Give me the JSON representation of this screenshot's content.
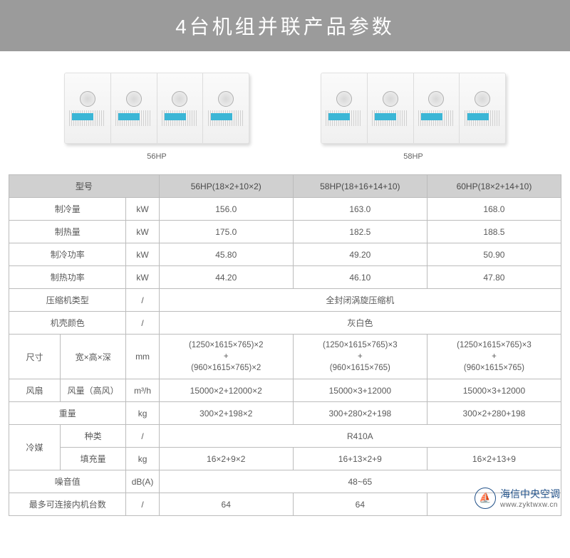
{
  "header": {
    "title": "4台机组并联产品参数"
  },
  "products": [
    {
      "label": "56HP",
      "panels": 4
    },
    {
      "label": "58HP",
      "panels": 4
    }
  ],
  "table": {
    "header": {
      "model_label": "型号",
      "models": [
        "56HP(18×2+10×2)",
        "58HP(18+16+14+10)",
        "60HP(18×2+14+10)"
      ]
    },
    "rows": [
      {
        "label": "制冷量",
        "unit": "kW",
        "cells": [
          "156.0",
          "163.0",
          "168.0"
        ]
      },
      {
        "label": "制热量",
        "unit": "kW",
        "cells": [
          "175.0",
          "182.5",
          "188.5"
        ]
      },
      {
        "label": "制冷功率",
        "unit": "kW",
        "cells": [
          "45.80",
          "49.20",
          "50.90"
        ]
      },
      {
        "label": "制热功率",
        "unit": "kW",
        "cells": [
          "44.20",
          "46.10",
          "47.80"
        ]
      },
      {
        "label": "压缩机类型",
        "unit": "/",
        "merged": "全封闭涡旋压缩机"
      },
      {
        "label": "机壳颜色",
        "unit": "/",
        "merged": "灰白色"
      }
    ],
    "dimensions": {
      "group": "尺寸",
      "sub": "宽×高×深",
      "unit": "mm",
      "cells": [
        "(1250×1615×765)×2\n+\n(960×1615×765)×2",
        "(1250×1615×765)×3\n+\n(960×1615×765)",
        "(1250×1615×765)×3\n+\n(960×1615×765)"
      ]
    },
    "fan": {
      "group": "风扇",
      "sub": "风量（高风）",
      "unit": "m³/h",
      "cells": [
        "15000×2+12000×2",
        "15000×3+12000",
        "15000×3+12000"
      ]
    },
    "weight": {
      "label": "重量",
      "unit": "kg",
      "cells": [
        "300×2+198×2",
        "300+280×2+198",
        "300×2+280+198"
      ]
    },
    "refrigerant": {
      "group": "冷媒",
      "type_row": {
        "sub": "种类",
        "unit": "/",
        "merged": "R410A"
      },
      "charge_row": {
        "sub": "填充量",
        "unit": "kg",
        "cells": [
          "16×2+9×2",
          "16+13×2+9",
          "16×2+13+9"
        ]
      }
    },
    "noise": {
      "label": "噪音值",
      "unit": "dB(A)",
      "merged": "48~65"
    },
    "max_indoor": {
      "label": "最多可连接内机台数",
      "unit": "/",
      "cells": [
        "64",
        "64",
        ""
      ]
    }
  },
  "watermark": {
    "brand": "海信中央空调",
    "url": "www.zyktwxw.cn",
    "logo_glyph": "⛵"
  },
  "colors": {
    "banner_bg": "#9b9b9b",
    "th_bg": "#d0d0d0",
    "border": "#bcbcbc",
    "text": "#5a5a5a",
    "accent": "#3bb6d6",
    "wm": "#205088"
  }
}
